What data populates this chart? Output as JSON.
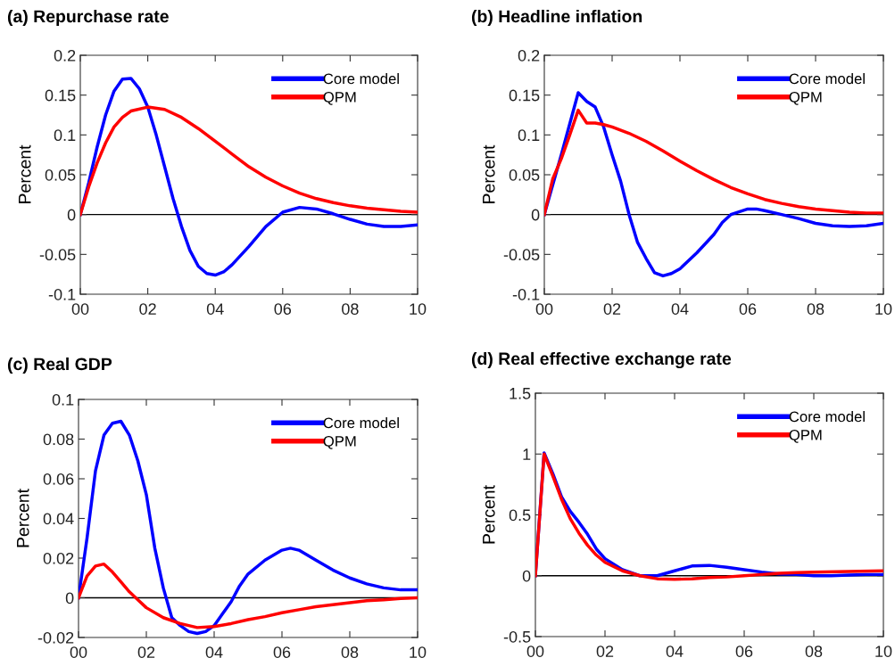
{
  "chart_data": [
    {
      "type": "line",
      "title": "(a) Repurchase rate",
      "ylabel": "Percent",
      "xlim": [
        0,
        10
      ],
      "ylim": [
        -0.1,
        0.2
      ],
      "xticks": [
        {
          "value": 0,
          "label": "00"
        },
        {
          "value": 2,
          "label": "02"
        },
        {
          "value": 4,
          "label": "04"
        },
        {
          "value": 6,
          "label": "06"
        },
        {
          "value": 8,
          "label": "08"
        },
        {
          "value": 10,
          "label": "10"
        }
      ],
      "yticks": [
        -0.1,
        -0.05,
        0,
        0.05,
        0.1,
        0.15,
        0.2
      ],
      "legend": "top right",
      "grid": false,
      "ref_lines": [
        {
          "axis": "y",
          "value": 0,
          "color": "#000000"
        }
      ],
      "series": [
        {
          "name": "Core model",
          "color": "#0000ff",
          "x": [
            0,
            0.25,
            0.5,
            0.75,
            1,
            1.25,
            1.5,
            1.75,
            2,
            2.25,
            2.5,
            2.75,
            3,
            3.25,
            3.5,
            3.75,
            4,
            4.25,
            4.5,
            5,
            5.5,
            6,
            6.5,
            7,
            7.5,
            8,
            8.5,
            9,
            9.5,
            10
          ],
          "values": [
            0,
            0.04,
            0.085,
            0.125,
            0.155,
            0.17,
            0.171,
            0.158,
            0.135,
            0.1,
            0.06,
            0.02,
            -0.015,
            -0.045,
            -0.065,
            -0.074,
            -0.076,
            -0.072,
            -0.063,
            -0.04,
            -0.015,
            0.003,
            0.009,
            0.007,
            0.001,
            -0.006,
            -0.012,
            -0.015,
            -0.015,
            -0.013
          ]
        },
        {
          "name": "QPM",
          "color": "#ff0000",
          "x": [
            0,
            0.25,
            0.5,
            0.75,
            1,
            1.25,
            1.5,
            2,
            2.5,
            3,
            3.5,
            4,
            4.5,
            5,
            5.5,
            6,
            6.5,
            7,
            7.5,
            8,
            8.5,
            9,
            9.5,
            10
          ],
          "values": [
            0,
            0.035,
            0.065,
            0.09,
            0.11,
            0.122,
            0.13,
            0.135,
            0.132,
            0.122,
            0.108,
            0.092,
            0.076,
            0.06,
            0.047,
            0.036,
            0.027,
            0.02,
            0.015,
            0.011,
            0.008,
            0.006,
            0.004,
            0.003
          ]
        }
      ]
    },
    {
      "type": "line",
      "title": "(b) Headline inflation",
      "ylabel": "Percent",
      "xlim": [
        0,
        10
      ],
      "ylim": [
        -0.1,
        0.2
      ],
      "xticks": [
        {
          "value": 0,
          "label": "00"
        },
        {
          "value": 2,
          "label": "02"
        },
        {
          "value": 4,
          "label": "04"
        },
        {
          "value": 6,
          "label": "06"
        },
        {
          "value": 8,
          "label": "08"
        },
        {
          "value": 10,
          "label": "10"
        }
      ],
      "yticks": [
        -0.1,
        -0.05,
        0,
        0.05,
        0.1,
        0.15,
        0.2
      ],
      "legend": "top right",
      "grid": false,
      "ref_lines": [
        {
          "axis": "y",
          "value": 0,
          "color": "#000000"
        }
      ],
      "series": [
        {
          "name": "Core model",
          "color": "#0000ff",
          "x": [
            0,
            0.5,
            1,
            1.25,
            1.5,
            1.75,
            2,
            2.25,
            2.5,
            2.75,
            3,
            3.25,
            3.5,
            3.75,
            4,
            4.5,
            5,
            5.25,
            5.5,
            6,
            6.25,
            6.5,
            7,
            7.5,
            8,
            8.5,
            9,
            9.5,
            10
          ],
          "values": [
            0,
            0.075,
            0.153,
            0.142,
            0.135,
            0.11,
            0.075,
            0.042,
            0,
            -0.035,
            -0.055,
            -0.073,
            -0.077,
            -0.074,
            -0.068,
            -0.048,
            -0.025,
            -0.01,
            0,
            0.007,
            0.007,
            0.005,
            0,
            -0.005,
            -0.011,
            -0.014,
            -0.015,
            -0.014,
            -0.011
          ]
        },
        {
          "name": "QPM",
          "color": "#ff0000",
          "x": [
            0,
            0.25,
            0.5,
            0.75,
            1,
            1.25,
            1.5,
            1.75,
            2,
            2.5,
            3,
            3.5,
            4,
            4.5,
            5,
            5.5,
            6,
            6.5,
            7,
            7.5,
            8,
            8.5,
            9,
            9.5,
            10
          ],
          "values": [
            0,
            0.045,
            0.07,
            0.1,
            0.131,
            0.115,
            0.115,
            0.113,
            0.11,
            0.102,
            0.092,
            0.08,
            0.067,
            0.055,
            0.044,
            0.034,
            0.026,
            0.019,
            0.014,
            0.01,
            0.007,
            0.005,
            0.003,
            0.002,
            0.002
          ]
        }
      ]
    },
    {
      "type": "line",
      "title": "(c) Real GDP",
      "ylabel": "Percent",
      "xlim": [
        0,
        10
      ],
      "ylim": [
        -0.02,
        0.1
      ],
      "xticks": [
        {
          "value": 0,
          "label": "00"
        },
        {
          "value": 2,
          "label": "02"
        },
        {
          "value": 4,
          "label": "04"
        },
        {
          "value": 6,
          "label": "06"
        },
        {
          "value": 8,
          "label": "08"
        },
        {
          "value": 10,
          "label": "10"
        }
      ],
      "yticks": [
        -0.02,
        0,
        0.02,
        0.04,
        0.06,
        0.08,
        0.1
      ],
      "legend": "top right",
      "grid": false,
      "ref_lines": [
        {
          "axis": "y",
          "value": 0,
          "color": "#000000"
        }
      ],
      "series": [
        {
          "name": "Core model",
          "color": "#0000ff",
          "x": [
            0,
            0.25,
            0.5,
            0.75,
            1,
            1.25,
            1.5,
            1.75,
            2,
            2.25,
            2.5,
            2.75,
            3,
            3.25,
            3.5,
            3.75,
            4,
            4.25,
            4.5,
            4.75,
            5,
            5.5,
            6,
            6.25,
            6.5,
            7,
            7.5,
            8,
            8.5,
            9,
            9.5,
            10
          ],
          "values": [
            0,
            0.03,
            0.064,
            0.082,
            0.088,
            0.089,
            0.082,
            0.069,
            0.052,
            0.025,
            0.005,
            -0.01,
            -0.014,
            -0.017,
            -0.018,
            -0.017,
            -0.014,
            -0.008,
            -0.002,
            0.006,
            0.012,
            0.019,
            0.024,
            0.025,
            0.024,
            0.019,
            0.014,
            0.01,
            0.007,
            0.005,
            0.004,
            0.004
          ]
        },
        {
          "name": "QPM",
          "color": "#ff0000",
          "x": [
            0,
            0.25,
            0.5,
            0.75,
            1,
            1.25,
            1.5,
            1.75,
            2,
            2.5,
            3,
            3.5,
            4,
            4.5,
            5,
            5.5,
            6,
            6.5,
            7,
            7.5,
            8,
            8.5,
            9,
            9.5,
            10
          ],
          "values": [
            0,
            0.011,
            0.016,
            0.017,
            0.013,
            0.008,
            0.003,
            -0.001,
            -0.005,
            -0.01,
            -0.013,
            -0.015,
            -0.0145,
            -0.013,
            -0.011,
            -0.0095,
            -0.0075,
            -0.006,
            -0.0045,
            -0.0035,
            -0.0025,
            -0.0015,
            -0.001,
            -0.0003,
            0
          ]
        }
      ]
    },
    {
      "type": "line",
      "title": "(d) Real effective exchange rate",
      "ylabel": "Percent",
      "xlim": [
        0,
        10
      ],
      "ylim": [
        -0.5,
        1.5
      ],
      "xticks": [
        {
          "value": 0,
          "label": "00"
        },
        {
          "value": 2,
          "label": "02"
        },
        {
          "value": 4,
          "label": "04"
        },
        {
          "value": 6,
          "label": "06"
        },
        {
          "value": 8,
          "label": "08"
        },
        {
          "value": 10,
          "label": "10"
        }
      ],
      "yticks": [
        -0.5,
        0,
        0.5,
        1,
        1.5
      ],
      "legend": "top right",
      "grid": false,
      "ref_lines": [
        {
          "axis": "y",
          "value": 0,
          "color": "#000000"
        }
      ],
      "series": [
        {
          "name": "Core model",
          "color": "#0000ff",
          "x": [
            0,
            0.25,
            0.5,
            0.75,
            1,
            1.25,
            1.5,
            1.75,
            2,
            2.5,
            3,
            3.5,
            4,
            4.5,
            5,
            5.5,
            6,
            6.5,
            7,
            7.5,
            8,
            8.5,
            9,
            9.5,
            10
          ],
          "values": [
            0,
            1.01,
            0.84,
            0.65,
            0.53,
            0.44,
            0.34,
            0.22,
            0.14,
            0.05,
            0,
            0,
            0.04,
            0.08,
            0.085,
            0.07,
            0.05,
            0.03,
            0.015,
            0.01,
            0,
            0,
            0.005,
            0.01,
            0.01
          ]
        },
        {
          "name": "QPM",
          "color": "#ff0000",
          "x": [
            0,
            0.25,
            0.5,
            0.75,
            1,
            1.25,
            1.5,
            1.75,
            2,
            2.5,
            3,
            3.5,
            4,
            4.5,
            5,
            5.5,
            6,
            6.5,
            7,
            7.5,
            8,
            9,
            10
          ],
          "values": [
            0,
            1.0,
            0.82,
            0.63,
            0.47,
            0.35,
            0.25,
            0.17,
            0.11,
            0.04,
            0,
            -0.025,
            -0.03,
            -0.025,
            -0.015,
            -0.01,
            0,
            0.01,
            0.02,
            0.025,
            0.03,
            0.035,
            0.04
          ]
        }
      ]
    }
  ]
}
